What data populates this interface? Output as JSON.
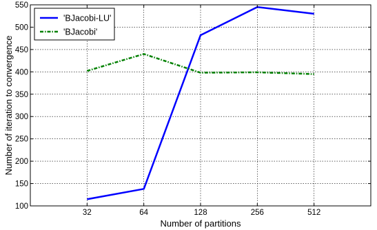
{
  "chart_data": {
    "type": "line",
    "title": "",
    "xlabel": "Number of partitions",
    "ylabel": "Number of iteration to convergence",
    "x_scale": "log2",
    "categories": [
      "32",
      "64",
      "128",
      "256",
      "512"
    ],
    "x": [
      32,
      64,
      128,
      256,
      512
    ],
    "xlim": [
      16,
      1024
    ],
    "ylim": [
      100,
      550
    ],
    "yticks": [
      100,
      150,
      200,
      250,
      300,
      350,
      400,
      450,
      500,
      550
    ],
    "grid": true,
    "legend_position": "top-left",
    "series": [
      {
        "name": "'BJacobi-LU'",
        "values": [
          115,
          138,
          482,
          545,
          530
        ],
        "color": "#0000ff",
        "style": "solid"
      },
      {
        "name": "'BJacobi'",
        "values": [
          402,
          440,
          398,
          399,
          395
        ],
        "color": "#008000",
        "style": "dash-dot"
      }
    ]
  }
}
